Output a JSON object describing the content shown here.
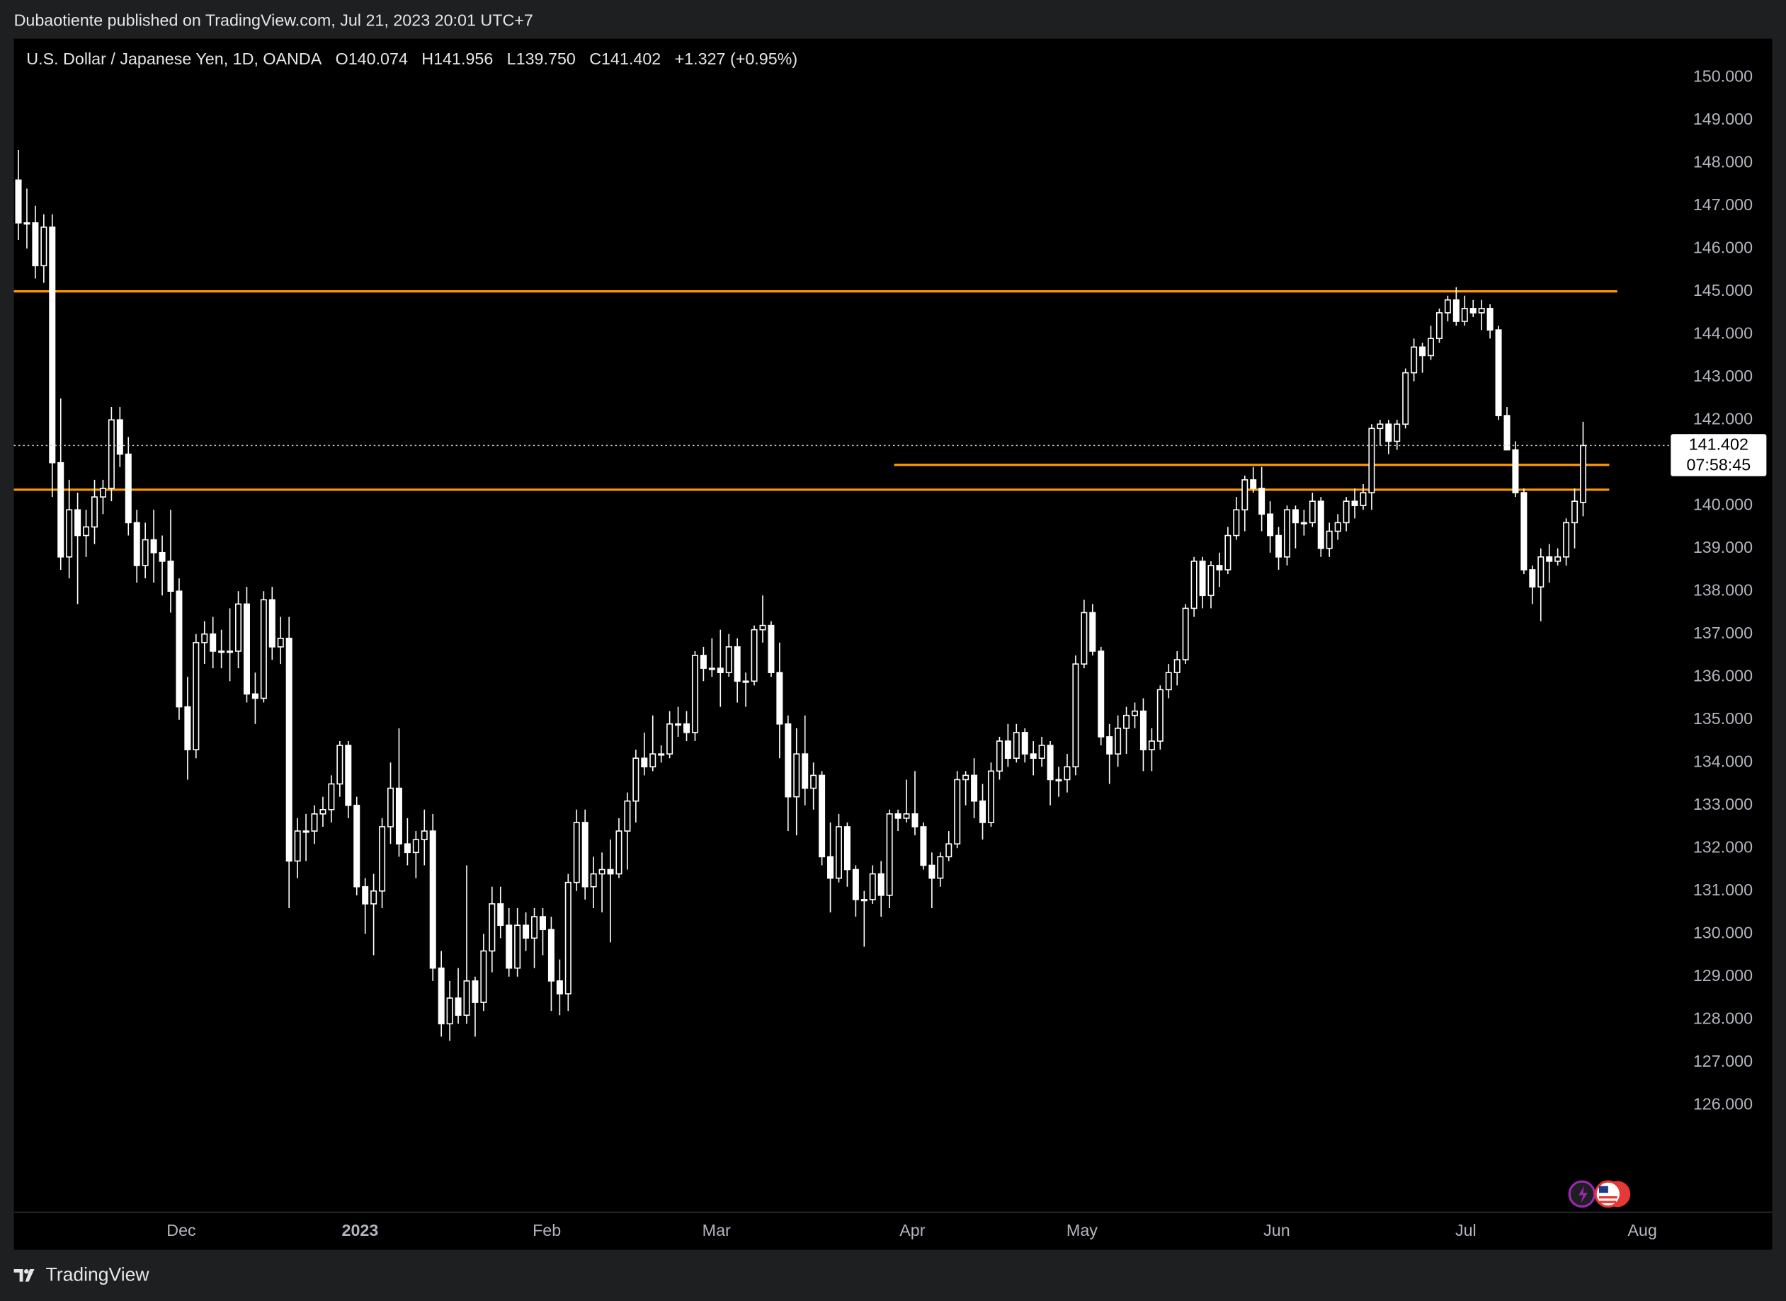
{
  "header": {
    "published": "Dubaotiente published on TradingView.com, Jul 21, 2023 20:01 UTC+7",
    "brand": "TradingView"
  },
  "chart_data": {
    "type": "candlestick",
    "legend": {
      "symbol": "U.S. Dollar / Japanese Yen, 1D, OANDA",
      "open_label": "O",
      "open": "140.074",
      "high_label": "H",
      "high": "141.956",
      "low_label": "L",
      "low": "139.750",
      "close_label": "C",
      "close": "141.402",
      "change": "+1.327 (+0.95%)"
    },
    "countdown": "07:58:45",
    "x_labels": [
      "Dec",
      "2023",
      "Feb",
      "Mar",
      "Apr",
      "May",
      "Jun",
      "Jul",
      "Aug"
    ],
    "ylim": [
      123.5,
      150.9
    ],
    "yticks": [
      {
        "value": 126,
        "label": "126.000"
      },
      {
        "value": 127,
        "label": "127.000"
      },
      {
        "value": 128,
        "label": "128.000"
      },
      {
        "value": 129,
        "label": "129.000"
      },
      {
        "value": 130,
        "label": "130.000"
      },
      {
        "value": 131,
        "label": "131.000"
      },
      {
        "value": 132,
        "label": "132.000"
      },
      {
        "value": 133,
        "label": "133.000"
      },
      {
        "value": 134,
        "label": "134.000"
      },
      {
        "value": 135,
        "label": "135.000"
      },
      {
        "value": 136,
        "label": "136.000"
      },
      {
        "value": 137,
        "label": "137.000"
      },
      {
        "value": 138,
        "label": "138.000"
      },
      {
        "value": 139,
        "label": "139.000"
      },
      {
        "value": 140,
        "label": "140.000"
      },
      {
        "value": 141,
        "label": "141.000"
      },
      {
        "value": 142,
        "label": "142.000"
      },
      {
        "value": 143,
        "label": "143.000"
      },
      {
        "value": 144,
        "label": "144.000"
      },
      {
        "value": 145,
        "label": "145.000"
      },
      {
        "value": 146,
        "label": "146.000"
      },
      {
        "value": 147,
        "label": "147.000"
      },
      {
        "value": 148,
        "label": "148.000"
      },
      {
        "value": 149,
        "label": "149.000"
      },
      {
        "value": 150,
        "label": "150.000"
      }
    ],
    "levels": [
      145.0,
      140.95,
      140.37
    ],
    "level_color": "#ff9800",
    "candle_color": "#ffffff",
    "ohlc": [
      [
        147.6,
        148.3,
        146.2,
        146.6
      ],
      [
        146.6,
        147.4,
        146.0,
        146.6
      ],
      [
        146.6,
        147.0,
        145.3,
        145.6
      ],
      [
        145.6,
        146.8,
        145.2,
        146.5
      ],
      [
        146.5,
        146.8,
        140.2,
        141.0
      ],
      [
        141.0,
        142.5,
        138.5,
        138.8
      ],
      [
        138.8,
        140.6,
        138.3,
        139.9
      ],
      [
        139.9,
        140.3,
        137.7,
        139.3
      ],
      [
        139.3,
        139.9,
        138.8,
        139.5
      ],
      [
        139.5,
        140.6,
        139.1,
        140.2
      ],
      [
        140.2,
        140.6,
        139.8,
        140.4
      ],
      [
        140.4,
        142.3,
        140.1,
        142.0
      ],
      [
        142.0,
        142.3,
        140.9,
        141.2
      ],
      [
        141.2,
        141.6,
        139.3,
        139.6
      ],
      [
        139.6,
        139.9,
        138.2,
        138.6
      ],
      [
        138.6,
        139.6,
        138.3,
        139.2
      ],
      [
        139.2,
        139.9,
        138.2,
        138.9
      ],
      [
        138.9,
        139.3,
        137.9,
        138.7
      ],
      [
        138.7,
        139.9,
        137.5,
        138.0
      ],
      [
        138.0,
        138.3,
        135.0,
        135.3
      ],
      [
        135.3,
        136.0,
        133.6,
        134.3
      ],
      [
        134.3,
        137.0,
        134.1,
        136.8
      ],
      [
        136.8,
        137.3,
        136.3,
        137.0
      ],
      [
        137.0,
        137.4,
        136.2,
        136.6
      ],
      [
        136.6,
        137.1,
        136.2,
        136.6
      ],
      [
        136.6,
        137.6,
        135.9,
        136.6
      ],
      [
        136.6,
        138.0,
        136.2,
        137.7
      ],
      [
        137.7,
        138.1,
        135.4,
        135.6
      ],
      [
        135.6,
        136.1,
        134.9,
        135.5
      ],
      [
        135.5,
        138.0,
        135.4,
        137.8
      ],
      [
        137.8,
        138.1,
        136.4,
        136.7
      ],
      [
        136.7,
        137.4,
        136.3,
        136.9
      ],
      [
        136.9,
        137.4,
        130.6,
        131.7
      ],
      [
        131.7,
        132.7,
        131.3,
        132.4
      ],
      [
        132.4,
        132.8,
        131.7,
        132.4
      ],
      [
        132.4,
        133.0,
        132.1,
        132.8
      ],
      [
        132.8,
        133.2,
        132.5,
        132.9
      ],
      [
        132.9,
        133.7,
        132.6,
        133.5
      ],
      [
        133.5,
        134.5,
        133.2,
        134.4
      ],
      [
        134.4,
        134.5,
        132.7,
        133.0
      ],
      [
        133.0,
        133.2,
        130.9,
        131.1
      ],
      [
        131.1,
        131.3,
        130.0,
        130.7
      ],
      [
        130.7,
        131.4,
        129.5,
        131.0
      ],
      [
        131.0,
        132.7,
        130.6,
        132.5
      ],
      [
        132.5,
        134.0,
        132.1,
        133.4
      ],
      [
        133.4,
        134.8,
        131.8,
        132.1
      ],
      [
        132.1,
        132.7,
        131.6,
        131.9
      ],
      [
        131.9,
        132.4,
        131.3,
        132.2
      ],
      [
        132.2,
        132.9,
        131.6,
        132.4
      ],
      [
        132.4,
        132.8,
        128.9,
        129.2
      ],
      [
        129.2,
        129.6,
        127.6,
        127.9
      ],
      [
        127.9,
        128.9,
        127.5,
        128.5
      ],
      [
        128.5,
        129.2,
        127.9,
        128.1
      ],
      [
        128.1,
        131.6,
        127.9,
        128.9
      ],
      [
        128.9,
        129.0,
        127.6,
        128.4
      ],
      [
        128.4,
        130.0,
        128.2,
        129.6
      ],
      [
        129.6,
        131.1,
        129.1,
        130.7
      ],
      [
        130.7,
        131.1,
        129.9,
        130.2
      ],
      [
        130.2,
        130.6,
        129.0,
        129.2
      ],
      [
        129.2,
        130.6,
        129.0,
        130.2
      ],
      [
        130.2,
        130.5,
        129.6,
        129.9
      ],
      [
        129.9,
        130.6,
        129.2,
        130.4
      ],
      [
        130.4,
        130.6,
        129.5,
        130.1
      ],
      [
        130.1,
        130.4,
        128.2,
        128.9
      ],
      [
        128.9,
        129.4,
        128.1,
        128.6
      ],
      [
        128.6,
        131.4,
        128.2,
        131.2
      ],
      [
        131.2,
        132.9,
        131.0,
        132.6
      ],
      [
        132.6,
        132.9,
        130.8,
        131.1
      ],
      [
        131.1,
        131.8,
        130.6,
        131.4
      ],
      [
        131.4,
        131.9,
        130.5,
        131.5
      ],
      [
        131.5,
        132.2,
        129.8,
        131.4
      ],
      [
        131.4,
        132.7,
        131.3,
        132.4
      ],
      [
        132.4,
        133.3,
        131.5,
        133.1
      ],
      [
        133.1,
        134.3,
        132.6,
        134.1
      ],
      [
        134.1,
        134.7,
        133.7,
        133.9
      ],
      [
        133.9,
        135.1,
        133.8,
        134.2
      ],
      [
        134.2,
        134.4,
        134.0,
        134.2
      ],
      [
        134.2,
        135.2,
        134.1,
        134.9
      ],
      [
        134.9,
        135.3,
        134.6,
        134.9
      ],
      [
        134.9,
        135.2,
        134.5,
        134.7
      ],
      [
        134.7,
        136.6,
        134.5,
        136.5
      ],
      [
        136.5,
        136.7,
        135.9,
        136.2
      ],
      [
        136.2,
        136.9,
        136.0,
        136.2
      ],
      [
        136.2,
        137.1,
        135.3,
        136.1
      ],
      [
        136.1,
        137.0,
        136.0,
        136.7
      ],
      [
        136.7,
        136.9,
        135.4,
        135.9
      ],
      [
        135.9,
        136.1,
        135.3,
        135.9
      ],
      [
        135.9,
        137.2,
        135.8,
        137.1
      ],
      [
        137.1,
        137.9,
        136.8,
        137.2
      ],
      [
        137.2,
        137.3,
        136.0,
        136.1
      ],
      [
        136.1,
        136.8,
        134.1,
        134.9
      ],
      [
        134.9,
        135.1,
        132.4,
        133.2
      ],
      [
        133.2,
        134.8,
        132.3,
        134.2
      ],
      [
        134.2,
        135.1,
        133.0,
        133.4
      ],
      [
        133.4,
        134.0,
        132.9,
        133.7
      ],
      [
        133.7,
        133.8,
        131.6,
        131.8
      ],
      [
        131.8,
        132.6,
        130.5,
        131.3
      ],
      [
        131.3,
        132.8,
        131.2,
        132.5
      ],
      [
        132.5,
        132.6,
        131.1,
        131.5
      ],
      [
        131.5,
        131.6,
        130.4,
        130.8
      ],
      [
        130.8,
        131.0,
        129.7,
        130.8
      ],
      [
        130.8,
        131.6,
        130.7,
        131.4
      ],
      [
        131.4,
        131.7,
        130.4,
        130.9
      ],
      [
        130.9,
        132.9,
        130.6,
        132.8
      ],
      [
        132.8,
        132.9,
        132.4,
        132.7
      ],
      [
        132.7,
        133.6,
        132.6,
        132.8
      ],
      [
        132.8,
        133.8,
        132.3,
        132.5
      ],
      [
        132.5,
        132.6,
        131.5,
        131.6
      ],
      [
        131.6,
        131.9,
        130.6,
        131.3
      ],
      [
        131.3,
        131.9,
        131.1,
        131.8
      ],
      [
        131.8,
        132.4,
        131.7,
        132.1
      ],
      [
        132.1,
        133.8,
        132.0,
        133.6
      ],
      [
        133.6,
        133.8,
        133.0,
        133.7
      ],
      [
        133.7,
        134.1,
        132.7,
        133.1
      ],
      [
        133.1,
        133.5,
        132.2,
        132.6
      ],
      [
        132.6,
        134.0,
        132.5,
        133.8
      ],
      [
        133.8,
        134.6,
        133.6,
        134.5
      ],
      [
        134.5,
        134.9,
        133.9,
        134.1
      ],
      [
        134.1,
        134.9,
        134.0,
        134.7
      ],
      [
        134.7,
        134.8,
        134.0,
        134.2
      ],
      [
        134.2,
        134.5,
        133.7,
        134.1
      ],
      [
        134.1,
        134.6,
        133.9,
        134.4
      ],
      [
        134.4,
        134.5,
        133.0,
        133.6
      ],
      [
        133.6,
        133.9,
        133.2,
        133.6
      ],
      [
        133.6,
        134.2,
        133.3,
        133.9
      ],
      [
        133.9,
        136.5,
        133.7,
        136.3
      ],
      [
        136.3,
        137.8,
        136.2,
        137.5
      ],
      [
        137.5,
        137.7,
        136.5,
        136.6
      ],
      [
        136.6,
        136.7,
        134.4,
        134.6
      ],
      [
        134.6,
        134.9,
        133.5,
        134.2
      ],
      [
        134.2,
        135.1,
        133.9,
        134.8
      ],
      [
        134.8,
        135.3,
        134.2,
        135.1
      ],
      [
        135.1,
        135.4,
        134.8,
        135.2
      ],
      [
        135.2,
        135.5,
        133.8,
        134.3
      ],
      [
        134.3,
        134.8,
        133.8,
        134.5
      ],
      [
        134.5,
        135.8,
        134.3,
        135.7
      ],
      [
        135.7,
        136.3,
        135.5,
        136.1
      ],
      [
        136.1,
        136.6,
        135.8,
        136.4
      ],
      [
        136.4,
        137.7,
        136.3,
        137.6
      ],
      [
        137.6,
        138.8,
        137.4,
        138.7
      ],
      [
        138.7,
        138.8,
        137.6,
        137.9
      ],
      [
        137.9,
        138.7,
        137.6,
        138.6
      ],
      [
        138.6,
        138.9,
        138.1,
        138.5
      ],
      [
        138.5,
        139.5,
        138.4,
        139.3
      ],
      [
        139.3,
        140.2,
        139.2,
        139.9
      ],
      [
        139.9,
        140.7,
        139.4,
        140.6
      ],
      [
        140.6,
        140.9,
        140.3,
        140.4
      ],
      [
        140.4,
        140.9,
        139.4,
        139.8
      ],
      [
        139.8,
        140.1,
        138.9,
        139.3
      ],
      [
        139.3,
        139.5,
        138.5,
        138.8
      ],
      [
        138.8,
        140.0,
        138.6,
        139.9
      ],
      [
        139.9,
        140.0,
        139.0,
        139.6
      ],
      [
        139.6,
        139.9,
        139.3,
        139.6
      ],
      [
        139.6,
        140.3,
        139.5,
        140.1
      ],
      [
        140.1,
        140.2,
        138.8,
        139.0
      ],
      [
        139.0,
        139.6,
        138.8,
        139.4
      ],
      [
        139.4,
        139.8,
        139.2,
        139.6
      ],
      [
        139.6,
        140.2,
        139.4,
        140.1
      ],
      [
        140.1,
        140.4,
        139.7,
        140.0
      ],
      [
        140.0,
        140.5,
        139.9,
        140.3
      ],
      [
        140.3,
        141.9,
        139.9,
        141.8
      ],
      [
        141.8,
        142.0,
        141.4,
        141.9
      ],
      [
        141.9,
        142.0,
        141.2,
        141.5
      ],
      [
        141.5,
        142.0,
        141.3,
        141.9
      ],
      [
        141.9,
        143.2,
        141.8,
        143.1
      ],
      [
        143.1,
        143.9,
        142.9,
        143.7
      ],
      [
        143.7,
        143.8,
        143.1,
        143.5
      ],
      [
        143.5,
        144.2,
        143.4,
        143.9
      ],
      [
        143.9,
        144.6,
        143.8,
        144.5
      ],
      [
        144.5,
        144.9,
        144.3,
        144.8
      ],
      [
        144.8,
        145.1,
        144.2,
        144.3
      ],
      [
        144.3,
        144.9,
        144.2,
        144.6
      ],
      [
        144.6,
        144.8,
        144.4,
        144.5
      ],
      [
        144.5,
        144.8,
        144.1,
        144.6
      ],
      [
        144.6,
        144.7,
        143.9,
        144.1
      ],
      [
        144.1,
        144.2,
        142.0,
        142.1
      ],
      [
        142.1,
        142.3,
        141.3,
        141.3
      ],
      [
        141.3,
        141.5,
        140.2,
        140.3
      ],
      [
        140.3,
        140.4,
        138.4,
        138.5
      ],
      [
        138.5,
        138.6,
        137.7,
        138.1
      ],
      [
        138.1,
        139.0,
        137.3,
        138.8
      ],
      [
        138.8,
        139.1,
        138.2,
        138.7
      ],
      [
        138.7,
        139.0,
        138.6,
        138.8
      ],
      [
        138.8,
        139.7,
        138.6,
        139.6
      ],
      [
        139.6,
        140.4,
        139.0,
        140.1
      ],
      [
        140.074,
        141.956,
        139.75,
        141.402
      ]
    ]
  }
}
